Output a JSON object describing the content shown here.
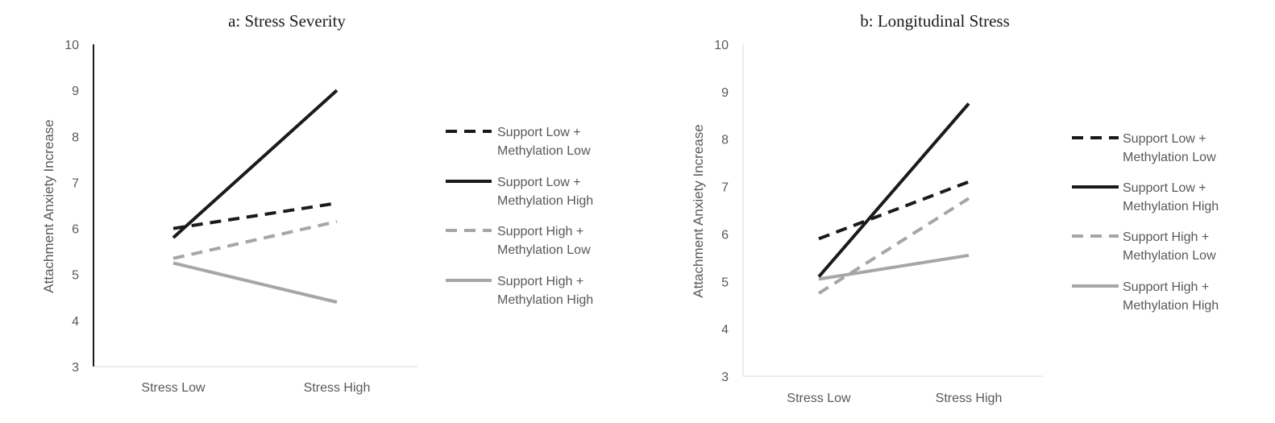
{
  "chart_data": [
    {
      "type": "line",
      "title": "a: Stress Severity",
      "xlabel": "",
      "ylabel": "Attachment Anxiety Increase",
      "categories": [
        "Stress Low",
        "Stress High"
      ],
      "ylim": [
        3,
        10
      ],
      "yticks": [
        "3",
        "4",
        "5",
        "6",
        "7",
        "8",
        "9",
        "10"
      ],
      "grid": false,
      "legend_position": "right",
      "series": [
        {
          "name": "Support Low + Methylation Low",
          "legend_lines": [
            "Support Low +",
            "Methylation Low"
          ],
          "values": [
            6.0,
            6.55
          ],
          "color": "#1a1a1a",
          "dashed": true
        },
        {
          "name": "Support Low + Methylation High",
          "legend_lines": [
            "Support Low +",
            "Methylation High"
          ],
          "values": [
            5.8,
            9.0
          ],
          "color": "#1a1a1a",
          "dashed": false
        },
        {
          "name": "Support High + Methylation Low",
          "legend_lines": [
            "Support High +",
            "Methylation Low"
          ],
          "values": [
            5.35,
            6.15
          ],
          "color": "#a6a6a6",
          "dashed": true
        },
        {
          "name": "Support High + Methylation High",
          "legend_lines": [
            "Support High +",
            "Methylation High"
          ],
          "values": [
            5.25,
            4.4
          ],
          "color": "#a6a6a6",
          "dashed": false
        }
      ]
    },
    {
      "type": "line",
      "title": "b: Longitudinal Stress",
      "xlabel": "",
      "ylabel": "Attachment Anxiety Increase",
      "categories": [
        "Stress Low",
        "Stress High"
      ],
      "ylim": [
        3,
        10
      ],
      "yticks": [
        "3",
        "4",
        "5",
        "6",
        "7",
        "8",
        "9",
        "10"
      ],
      "grid": false,
      "legend_position": "right",
      "series": [
        {
          "name": "Support Low + Methylation Low",
          "legend_lines": [
            "Support Low +",
            "Methylation Low"
          ],
          "values": [
            5.9,
            7.1
          ],
          "color": "#1a1a1a",
          "dashed": true
        },
        {
          "name": "Support Low + Methylation High",
          "legend_lines": [
            "Support Low +",
            "Methylation High"
          ],
          "values": [
            5.1,
            8.75
          ],
          "color": "#1a1a1a",
          "dashed": false
        },
        {
          "name": "Support High + Methylation Low",
          "legend_lines": [
            "Support High +",
            "Methylation Low"
          ],
          "values": [
            4.75,
            6.75
          ],
          "color": "#a6a6a6",
          "dashed": true
        },
        {
          "name": "Support High + Methylation High",
          "legend_lines": [
            "Support High +",
            "Methylation High"
          ],
          "values": [
            5.05,
            5.55
          ],
          "color": "#a6a6a6",
          "dashed": false
        }
      ]
    }
  ]
}
